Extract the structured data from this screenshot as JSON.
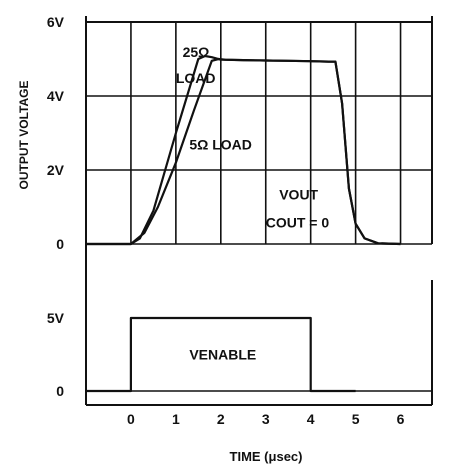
{
  "chart_data": [
    {
      "type": "line",
      "ylabel": "OUTPUT VOLTAGE",
      "y_ticks": [
        "6V",
        "4V",
        "2V",
        "0"
      ],
      "ylim": [
        0,
        6
      ],
      "xlim": [
        -1,
        6.7
      ],
      "grid": true,
      "series": [
        {
          "name": "25Ω LOAD",
          "x": [
            -1,
            0,
            0.2,
            0.5,
            1.0,
            1.5,
            1.65,
            1.8,
            2.0,
            2.5,
            3.0,
            3.5,
            4.0,
            4.4,
            4.55,
            4.7,
            4.85,
            5.0,
            5.2,
            5.5,
            6.0
          ],
          "y": [
            0,
            0,
            0.15,
            0.9,
            3.0,
            5.0,
            5.08,
            5.05,
            4.98,
            4.97,
            4.96,
            4.95,
            4.94,
            4.93,
            4.93,
            3.8,
            1.5,
            0.55,
            0.15,
            0.02,
            0
          ]
        },
        {
          "name": "5Ω LOAD",
          "x": [
            -1,
            0,
            0.3,
            0.6,
            1.0,
            1.4,
            1.8,
            1.95,
            2.1,
            2.5,
            3.0,
            3.5,
            4.0,
            4.4,
            4.55,
            4.7,
            4.85,
            5.0,
            5.2,
            5.5,
            6.0
          ],
          "y": [
            0,
            0,
            0.3,
            1.0,
            2.2,
            3.6,
            4.95,
            5.0,
            4.98,
            4.97,
            4.96,
            4.95,
            4.94,
            4.93,
            4.93,
            3.8,
            1.5,
            0.55,
            0.15,
            0.02,
            0
          ]
        }
      ],
      "annotations": [
        {
          "text": "25Ω",
          "x": 1.15,
          "y": 5.05
        },
        {
          "text": "LOAD",
          "x": 1.0,
          "y": 4.35
        },
        {
          "text": "5Ω LOAD",
          "x": 1.3,
          "y": 2.55
        },
        {
          "text": "VOUT",
          "x": 3.3,
          "y": 1.2
        },
        {
          "text": "COUT = 0",
          "x": 3.0,
          "y": 0.45
        }
      ]
    },
    {
      "type": "line",
      "xlabel": "TIME (μsec)",
      "x_ticks": [
        "0",
        "1",
        "2",
        "3",
        "4",
        "5",
        "6"
      ],
      "y_ticks": [
        "5V",
        "0"
      ],
      "ylim": [
        0,
        5
      ],
      "xlim": [
        -1,
        6.7
      ],
      "series": [
        {
          "name": "VENABLE",
          "x": [
            -1,
            0,
            0,
            4,
            4,
            5
          ],
          "y": [
            0,
            0,
            5,
            5,
            0,
            0
          ]
        }
      ],
      "annotations": [
        {
          "text": "VENABLE",
          "x": 1.3,
          "y": 2.5
        }
      ]
    }
  ]
}
